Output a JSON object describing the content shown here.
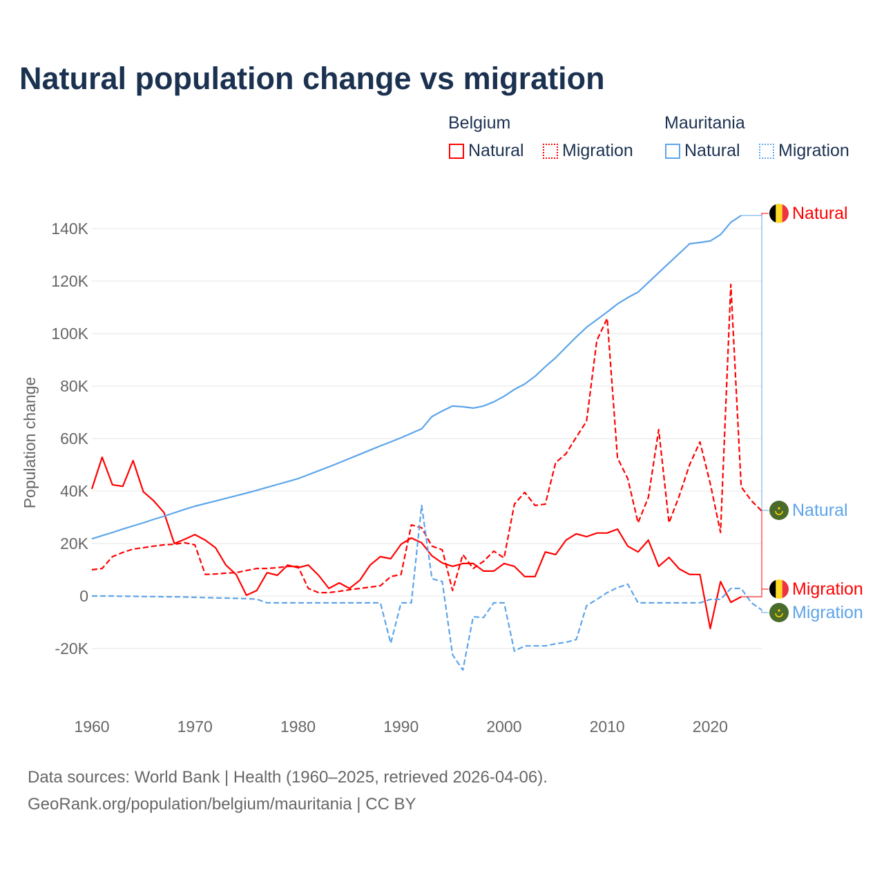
{
  "colors": {
    "belgium": "#ff0000",
    "mauritania": "#5ca4ea",
    "grid": "#e6e6e6",
    "axis_text": "#666666",
    "title": "#1b3150"
  },
  "legend": {
    "groups": [
      {
        "name": "Belgium",
        "items": [
          {
            "label": "Natural",
            "style": "solid",
            "color": "#ff0000"
          },
          {
            "label": "Migration",
            "style": "dotted",
            "color": "#ff0000"
          }
        ]
      },
      {
        "name": "Mauritania",
        "items": [
          {
            "label": "Natural",
            "style": "solid",
            "color": "#5ca4ea"
          },
          {
            "label": "Migration",
            "style": "dotted",
            "color": "#5ca4ea"
          }
        ]
      }
    ]
  },
  "footer": {
    "line1": "Data sources: World Bank | Health (1960–2025, retrieved 2026-04-06).",
    "line2": "GeoRank.org/population/belgium/mauritania | CC BY"
  },
  "chart_data": {
    "type": "line",
    "title": "Natural population change vs migration",
    "xlabel": "",
    "ylabel": "Population change",
    "xlim": [
      1960,
      2025
    ],
    "ylim": [
      -30000,
      150000
    ],
    "xticks": [
      1960,
      1970,
      1980,
      1990,
      2000,
      2010,
      2020
    ],
    "xtick_labels": [
      "1960",
      "1970",
      "1980",
      "1990",
      "2000",
      "2010",
      "2020"
    ],
    "yticks": [
      -20000,
      0,
      20000,
      40000,
      60000,
      80000,
      100000,
      120000,
      140000
    ],
    "ytick_labels": [
      "-20K",
      "0",
      "20K",
      "40K",
      "60K",
      "80K",
      "100K",
      "120K",
      "140K"
    ],
    "grid": true,
    "series": [
      {
        "name": "Belgium Natural",
        "country": "Belgium",
        "label": "Natural",
        "flag": "belgium-flag",
        "color": "#ff0000",
        "dash": false,
        "start": 1960,
        "values": [
          40800,
          52900,
          42400,
          41800,
          51600,
          39700,
          36300,
          31800,
          20000,
          21600,
          23400,
          21300,
          18400,
          11800,
          8200,
          300,
          2100,
          8900,
          7900,
          11800,
          10800,
          11800,
          7900,
          2900,
          5000,
          2900,
          6000,
          11800,
          15000,
          14200,
          19700,
          22100,
          20300,
          15300,
          12600,
          11300,
          12400,
          12400,
          9500,
          9500,
          12400,
          11300,
          7400,
          7400,
          16800,
          15800,
          21300,
          23700,
          22600,
          24000,
          24000,
          25500,
          19000,
          16800,
          21300,
          11300,
          14700,
          10300,
          8200,
          8200,
          -12400,
          5500,
          -2400,
          -300
        ]
      },
      {
        "name": "Belgium Migration",
        "country": "Belgium",
        "label": "Migration",
        "flag": "belgium-flag",
        "color": "#ff0000",
        "dash": true,
        "start": 1960,
        "values": [
          10000,
          10500,
          15000,
          16600,
          17900,
          18400,
          19000,
          19500,
          19700,
          20300,
          19500,
          8200,
          8400,
          8700,
          8900,
          9700,
          10500,
          10500,
          10800,
          11300,
          11300,
          2900,
          1300,
          1300,
          1800,
          2400,
          2900,
          3400,
          3900,
          7400,
          8200,
          27100,
          26000,
          19000,
          17600,
          2100,
          15800,
          10500,
          13200,
          17100,
          14500,
          35000,
          39500,
          34500,
          35000,
          50800,
          54200,
          60500,
          66600,
          97400,
          105800,
          52600,
          44700,
          27900,
          37600,
          63400,
          27900,
          38200,
          50000,
          58700,
          42900,
          24200,
          118700,
          41600,
          36300,
          32400
        ]
      },
      {
        "name": "Mauritania Natural",
        "country": "Mauritania",
        "label": "Natural",
        "flag": "mauritania-flag",
        "color": "#5ca4ea",
        "dash": false,
        "start": 1960,
        "values": [
          21800,
          23000,
          24200,
          25500,
          26700,
          27900,
          29200,
          30400,
          31700,
          33000,
          34200,
          35200,
          36200,
          37200,
          38200,
          39200,
          40300,
          41400,
          42500,
          43600,
          44700,
          46200,
          47700,
          49200,
          50800,
          52400,
          54000,
          55600,
          57200,
          58700,
          60300,
          62000,
          63700,
          68400,
          70500,
          72400,
          72100,
          71600,
          72400,
          74000,
          76100,
          78700,
          80800,
          83700,
          87400,
          90800,
          94800,
          98700,
          102400,
          105300,
          108200,
          111300,
          113700,
          115800,
          119500,
          123200,
          126900,
          130500,
          134200,
          134700,
          135300,
          137700,
          142400,
          145000
        ]
      },
      {
        "name": "Mauritania Migration",
        "country": "Mauritania",
        "label": "Migration",
        "flag": "mauritania-flag",
        "color": "#5ca4ea",
        "dash": true,
        "start": 1960,
        "values": [
          0,
          0,
          0,
          -100,
          -100,
          -200,
          -200,
          -300,
          -300,
          -400,
          -500,
          -600,
          -700,
          -800,
          -900,
          -1000,
          -1200,
          -2600,
          -2600,
          -2600,
          -2600,
          -2600,
          -2600,
          -2600,
          -2600,
          -2600,
          -2600,
          -2600,
          -2600,
          -18000,
          -2600,
          -2600,
          34500,
          6600,
          5500,
          -22400,
          -28200,
          -7900,
          -8200,
          -2600,
          -2600,
          -21000,
          -19000,
          -19000,
          -19000,
          -18200,
          -17600,
          -16600,
          -3700,
          -1300,
          1300,
          3200,
          4500,
          -2600,
          -2600,
          -2600,
          -2600,
          -2600,
          -2600,
          -2600,
          -1300,
          -1300,
          2900,
          2900,
          -2600,
          -5300
        ]
      }
    ]
  }
}
